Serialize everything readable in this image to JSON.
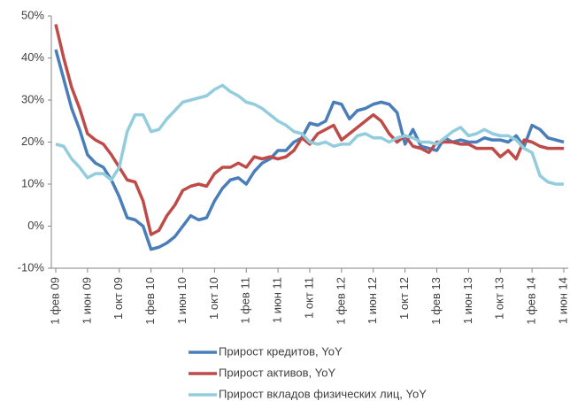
{
  "chart_data": {
    "type": "line",
    "categories": [
      "1 фев 09",
      null,
      null,
      null,
      "1 июн 09",
      null,
      null,
      null,
      "1 окт 09",
      null,
      null,
      null,
      "1 фев 10",
      null,
      null,
      null,
      "1 июн 10",
      null,
      null,
      null,
      "1 окт 10",
      null,
      null,
      null,
      "1 фев 11",
      null,
      null,
      null,
      "1 июн 11",
      null,
      null,
      null,
      "1 окт 11",
      null,
      null,
      null,
      "1 фев 12",
      null,
      null,
      null,
      "1 июн 12",
      null,
      null,
      null,
      "1 окт 12",
      null,
      null,
      null,
      "1 фев 13",
      null,
      null,
      null,
      "1 июн 13",
      null,
      null,
      null,
      "1 окт 13",
      null,
      null,
      null,
      "1 фев 14",
      null,
      null,
      null,
      "1 июн 14"
    ],
    "series": [
      {
        "name": "Прирост кредитов, YoY",
        "color": "#4a7ebb",
        "values": [
          42,
          35,
          28,
          23,
          17,
          15,
          14,
          11,
          7,
          2,
          1.5,
          0,
          -5.5,
          -5,
          -4,
          -2.5,
          0,
          2.5,
          1.5,
          2,
          6,
          9,
          11,
          11.5,
          10,
          13,
          15,
          16,
          18,
          18,
          20,
          21,
          24.5,
          24,
          25,
          29.5,
          29,
          25.5,
          27.5,
          28,
          29,
          29.5,
          29,
          27,
          19.5,
          23,
          19,
          18.5,
          18,
          21,
          20,
          20.5,
          20,
          20,
          21,
          20.5,
          20.5,
          20,
          21.5,
          19,
          24,
          23,
          21,
          20.5,
          20
        ]
      },
      {
        "name": "Прирост активов, YoY",
        "color": "#be4b48",
        "values": [
          48,
          40,
          33,
          28,
          22,
          20.5,
          19.5,
          17,
          14,
          11,
          10.5,
          6,
          -2,
          -1,
          2.5,
          5,
          8.5,
          9.5,
          10,
          9.5,
          12.5,
          14,
          14,
          15,
          14,
          16.5,
          16,
          16.5,
          16,
          16.5,
          18,
          21,
          19.5,
          22,
          23,
          24,
          20.5,
          22,
          23.5,
          25,
          26.5,
          25,
          22,
          20,
          21.5,
          19,
          18.5,
          17.5,
          20,
          20,
          20,
          19.5,
          19.5,
          18.5,
          18.5,
          18.5,
          16.5,
          18,
          16,
          20.5,
          20,
          19,
          18.5,
          18.5,
          18.5
        ]
      },
      {
        "name": "Прирост вкладов физических лиц, YoY",
        "color": "#93cddd",
        "values": [
          19.5,
          19,
          16,
          14,
          11.5,
          12.5,
          12.5,
          11,
          14,
          22.5,
          26.5,
          26.5,
          22.5,
          23,
          25.5,
          27.5,
          29.5,
          30,
          30.5,
          31,
          32.5,
          33.5,
          32,
          31,
          29.5,
          29,
          28,
          26.5,
          25,
          24,
          22.5,
          22,
          20,
          19.5,
          20,
          19,
          19.5,
          19.5,
          21.5,
          22,
          21,
          21,
          20,
          21,
          21.5,
          21,
          20,
          20,
          19.5,
          21,
          22.5,
          23.5,
          21.5,
          22,
          23,
          22,
          21.5,
          21.5,
          20.5,
          18.5,
          17.5,
          12,
          10.5,
          10,
          10
        ]
      }
    ],
    "ylim": [
      -10,
      50
    ],
    "yticks": [
      {
        "value": -10,
        "label": "-10%"
      },
      {
        "value": 0,
        "label": "0%"
      },
      {
        "value": 10,
        "label": "10%"
      },
      {
        "value": 20,
        "label": "20%"
      },
      {
        "value": 30,
        "label": "30%"
      },
      {
        "value": 40,
        "label": "40%"
      },
      {
        "value": 50,
        "label": "50%"
      }
    ],
    "grid": false
  }
}
